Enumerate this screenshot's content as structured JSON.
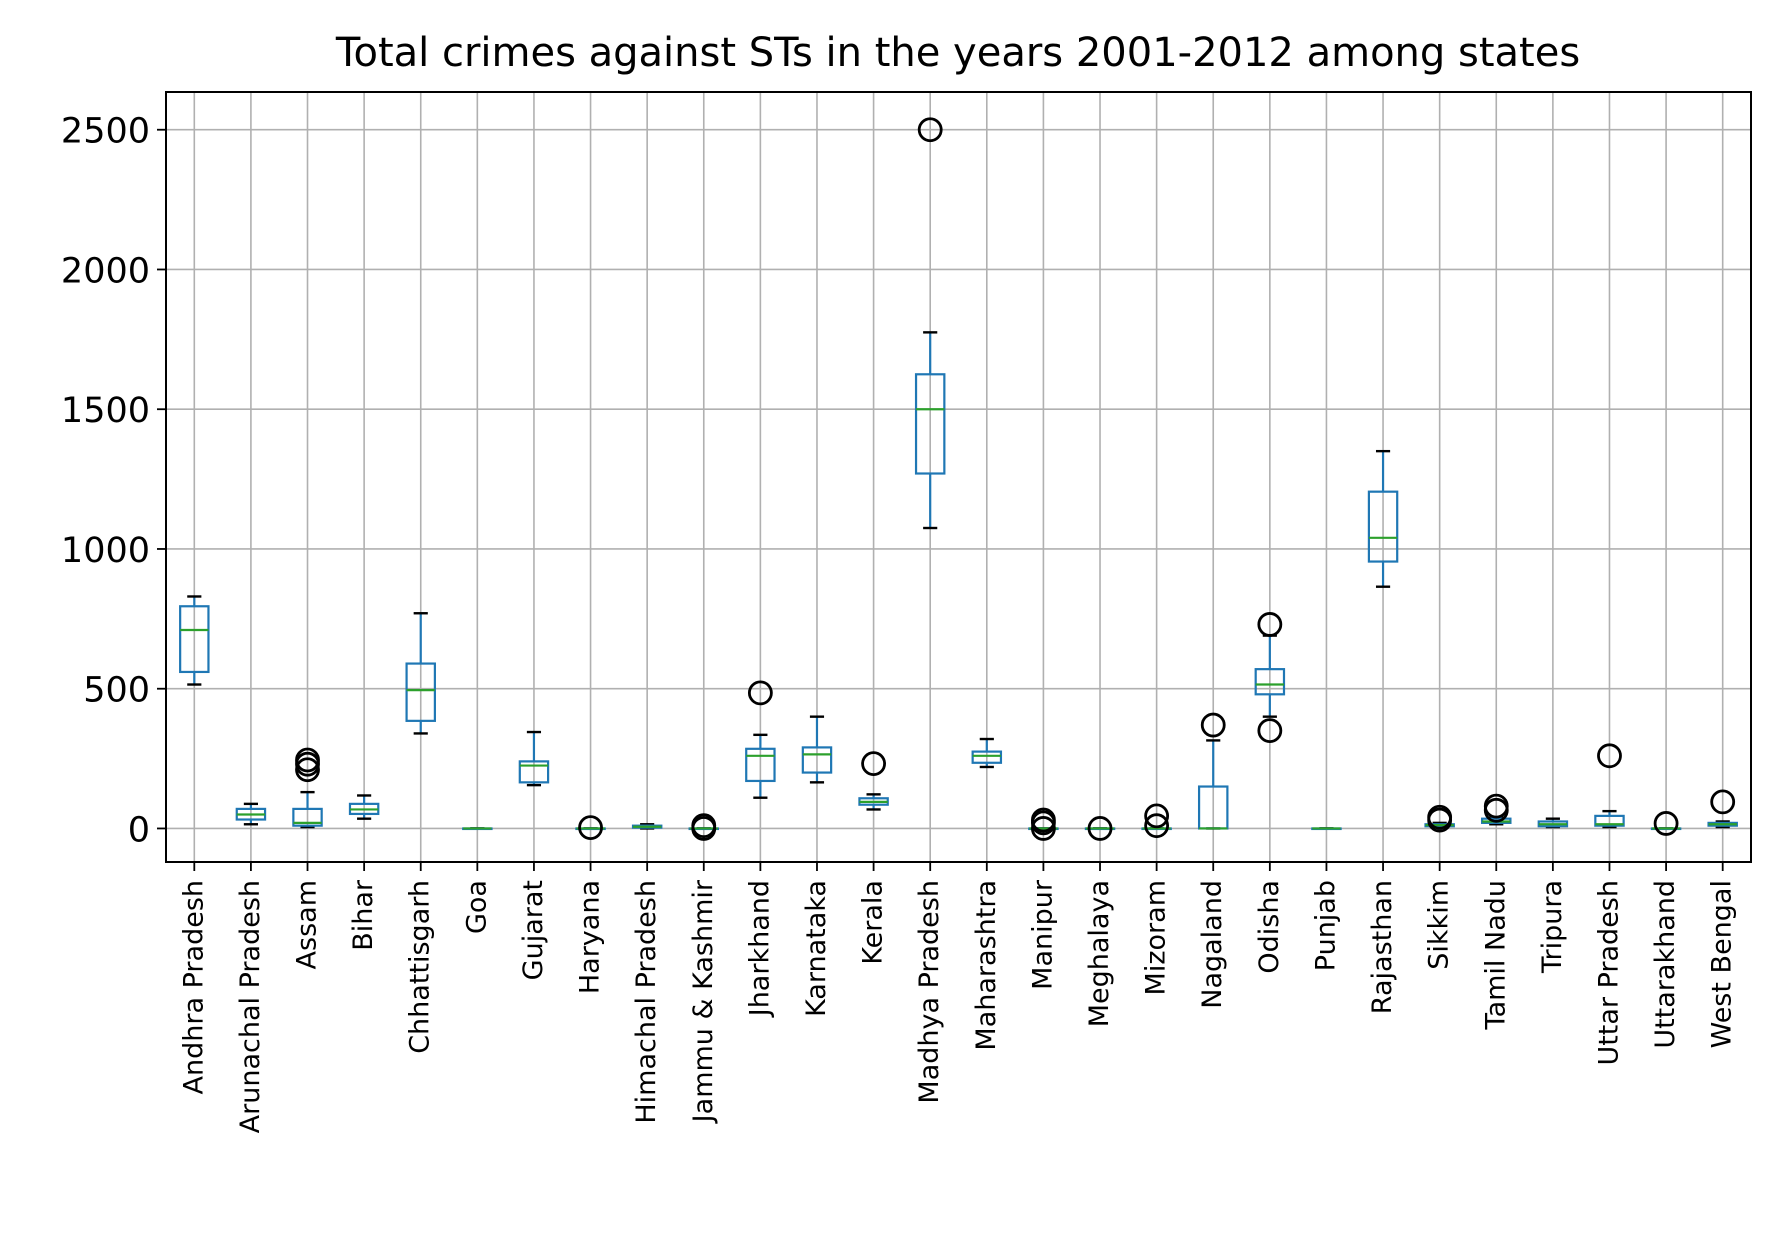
{
  "chart_data": {
    "type": "boxplot",
    "title": "Total crimes against STs in the years 2001-2012 among states",
    "xlabel": "",
    "ylabel": "",
    "ylim": [
      -120,
      2635
    ],
    "yticks": [
      0,
      500,
      1000,
      1500,
      2000,
      2500
    ],
    "grid": true,
    "colors": {
      "box": "#1f77b4",
      "median": "#2ca02c",
      "cap": "#000000",
      "flier": "#000000",
      "grid": "#b0b0b0"
    },
    "categories": [
      "Andhra Pradesh",
      "Arunachal Pradesh",
      "Assam",
      "Bihar",
      "Chhattisgarh",
      "Goa",
      "Gujarat",
      "Haryana",
      "Himachal Pradesh",
      "Jammu & Kashmir",
      "Jharkhand",
      "Karnataka",
      "Kerala",
      "Madhya Pradesh",
      "Maharashtra",
      "Manipur",
      "Meghalaya",
      "Mizoram",
      "Nagaland",
      "Odisha",
      "Punjab",
      "Rajasthan",
      "Sikkim",
      "Tamil Nadu",
      "Tripura",
      "Uttar Pradesh",
      "Uttarakhand",
      "West Bengal"
    ],
    "boxes": [
      {
        "whisker_low": 515,
        "q1": 560,
        "median": 710,
        "q3": 795,
        "whisker_high": 830,
        "fliers": []
      },
      {
        "whisker_low": 15,
        "q1": 32,
        "median": 50,
        "q3": 70,
        "whisker_high": 88,
        "fliers": []
      },
      {
        "whisker_low": 5,
        "q1": 10,
        "median": 20,
        "q3": 70,
        "whisker_high": 130,
        "fliers": [
          210,
          230,
          245
        ]
      },
      {
        "whisker_low": 35,
        "q1": 52,
        "median": 68,
        "q3": 88,
        "whisker_high": 118,
        "fliers": []
      },
      {
        "whisker_low": 340,
        "q1": 385,
        "median": 495,
        "q3": 590,
        "whisker_high": 770,
        "fliers": []
      },
      {
        "whisker_low": 0,
        "q1": 0,
        "median": 0,
        "q3": 0,
        "whisker_high": 0,
        "fliers": []
      },
      {
        "whisker_low": 155,
        "q1": 165,
        "median": 225,
        "q3": 240,
        "whisker_high": 345,
        "fliers": []
      },
      {
        "whisker_low": 0,
        "q1": 0,
        "median": 0,
        "q3": 0,
        "whisker_high": 0,
        "fliers": [
          3
        ]
      },
      {
        "whisker_low": 0,
        "q1": 3,
        "median": 6,
        "q3": 10,
        "whisker_high": 15,
        "fliers": []
      },
      {
        "whisker_low": 0,
        "q1": 0,
        "median": 0,
        "q3": 0,
        "whisker_high": 0,
        "fliers": [
          0,
          10
        ]
      },
      {
        "whisker_low": 110,
        "q1": 170,
        "median": 260,
        "q3": 285,
        "whisker_high": 335,
        "fliers": [
          485
        ]
      },
      {
        "whisker_low": 165,
        "q1": 200,
        "median": 265,
        "q3": 290,
        "whisker_high": 400,
        "fliers": []
      },
      {
        "whisker_low": 68,
        "q1": 85,
        "median": 95,
        "q3": 108,
        "whisker_high": 122,
        "fliers": [
          232
        ]
      },
      {
        "whisker_low": 1075,
        "q1": 1270,
        "median": 1500,
        "q3": 1625,
        "whisker_high": 1775,
        "fliers": [
          2500
        ]
      },
      {
        "whisker_low": 220,
        "q1": 235,
        "median": 260,
        "q3": 275,
        "whisker_high": 320,
        "fliers": []
      },
      {
        "whisker_low": 0,
        "q1": 0,
        "median": 0,
        "q3": 0,
        "whisker_high": 0,
        "fliers": [
          0,
          20,
          30
        ]
      },
      {
        "whisker_low": 0,
        "q1": 0,
        "median": 0,
        "q3": 0,
        "whisker_high": 0,
        "fliers": [
          0
        ]
      },
      {
        "whisker_low": 0,
        "q1": 0,
        "median": 0,
        "q3": 0,
        "whisker_high": 0,
        "fliers": [
          10,
          45
        ]
      },
      {
        "whisker_low": 0,
        "q1": 0,
        "median": 0,
        "q3": 150,
        "whisker_high": 315,
        "fliers": [
          370
        ]
      },
      {
        "whisker_low": 400,
        "q1": 480,
        "median": 515,
        "q3": 570,
        "whisker_high": 690,
        "fliers": [
          350,
          730
        ]
      },
      {
        "whisker_low": 0,
        "q1": 0,
        "median": 0,
        "q3": 0,
        "whisker_high": 0,
        "fliers": []
      },
      {
        "whisker_low": 865,
        "q1": 955,
        "median": 1040,
        "q3": 1205,
        "whisker_high": 1350,
        "fliers": []
      },
      {
        "whisker_low": 5,
        "q1": 8,
        "median": 12,
        "q3": 15,
        "whisker_high": 20,
        "fliers": [
          30,
          40
        ]
      },
      {
        "whisker_low": 15,
        "q1": 20,
        "median": 25,
        "q3": 35,
        "whisker_high": 40,
        "fliers": [
          65,
          80
        ]
      },
      {
        "whisker_low": 5,
        "q1": 8,
        "median": 15,
        "q3": 25,
        "whisker_high": 35,
        "fliers": []
      },
      {
        "whisker_low": 5,
        "q1": 10,
        "median": 15,
        "q3": 45,
        "whisker_high": 62,
        "fliers": [
          260
        ]
      },
      {
        "whisker_low": 0,
        "q1": 0,
        "median": 0,
        "q3": 0,
        "whisker_high": 0,
        "fliers": [
          18
        ]
      },
      {
        "whisker_low": 5,
        "q1": 10,
        "median": 15,
        "q3": 20,
        "whisker_high": 25,
        "fliers": [
          95
        ]
      }
    ]
  }
}
